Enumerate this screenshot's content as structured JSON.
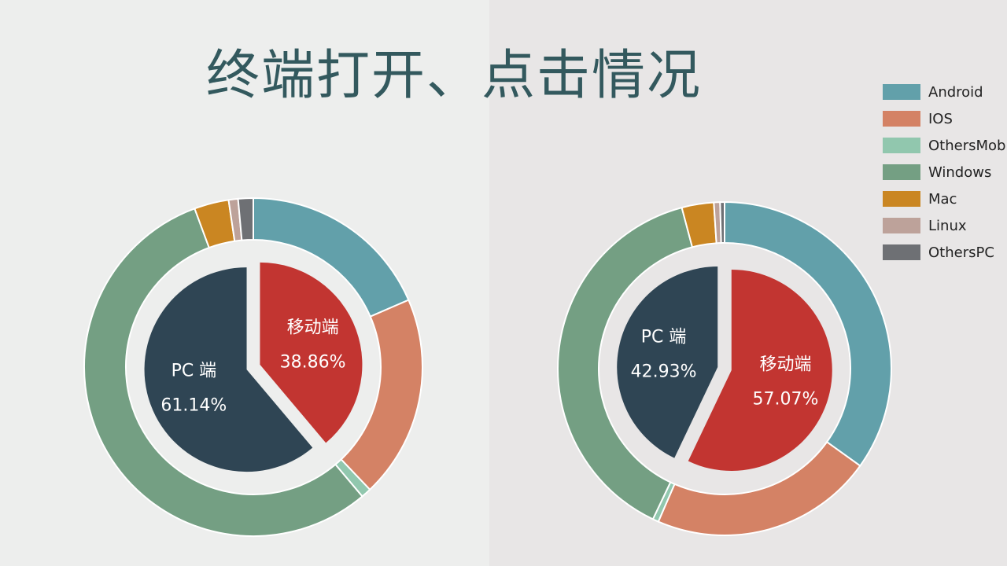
{
  "title": "终端打开、点击情况",
  "colors": {
    "Android": "#62a0aa",
    "IOS": "#d48265",
    "OthersMob": "#91c7ae",
    "Windows": "#749f83",
    "Mac": "#ca8622",
    "Linux": "#bda29a",
    "OthersPC": "#6e7074",
    "mobile_inner": "#c23531",
    "pc_inner": "#2f4554"
  },
  "legend": [
    "Android",
    "IOS",
    "OthersMob",
    "Windows",
    "Mac",
    "Linux",
    "OthersPC"
  ],
  "chart_data": [
    {
      "type": "pie",
      "inner": [
        {
          "name": "移动端",
          "value": 38.86,
          "label": "38.86%"
        },
        {
          "name": "PC 端",
          "value": 61.14,
          "label": "61.14%"
        }
      ],
      "outer": [
        {
          "name": "Android",
          "value": 18.5
        },
        {
          "name": "IOS",
          "value": 19.4
        },
        {
          "name": "OthersMob",
          "value": 0.96
        },
        {
          "name": "Windows",
          "value": 55.5
        },
        {
          "name": "Mac",
          "value": 3.3
        },
        {
          "name": "Linux",
          "value": 0.9
        },
        {
          "name": "OthersPC",
          "value": 1.44
        }
      ]
    },
    {
      "type": "pie",
      "inner": [
        {
          "name": "移动端",
          "value": 57.07,
          "label": "57.07%"
        },
        {
          "name": "PC 端",
          "value": 42.93,
          "label": "42.93%"
        }
      ],
      "outer": [
        {
          "name": "Android",
          "value": 34.9
        },
        {
          "name": "IOS",
          "value": 21.6
        },
        {
          "name": "OthersMob",
          "value": 0.57
        },
        {
          "name": "Windows",
          "value": 38.8
        },
        {
          "name": "Mac",
          "value": 3.1
        },
        {
          "name": "Linux",
          "value": 0.6
        },
        {
          "name": "OthersPC",
          "value": 0.43
        }
      ]
    }
  ]
}
